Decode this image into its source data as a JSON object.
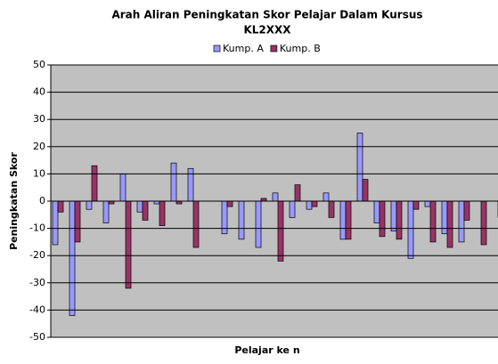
{
  "chart_data": {
    "type": "bar",
    "title": [
      "Arah Aliran Peningkatan Skor Pelajar Dalam Kursus",
      "KL2XXX"
    ],
    "x_label": "Pelajar ke n",
    "y_label": "Peningkatan Skor",
    "categories": [
      null,
      null,
      null,
      null,
      null,
      null,
      null,
      null,
      null,
      null,
      null,
      null,
      null,
      null,
      null,
      null,
      null,
      null,
      null,
      null,
      null,
      null,
      null,
      null,
      null,
      null,
      null
    ],
    "series": [
      {
        "name": "Kump. A",
        "color": "#9999ff",
        "values": [
          -16,
          -42,
          -3,
          -8,
          10,
          -4,
          -1,
          14,
          12,
          0,
          -12,
          -14,
          -17,
          3,
          -6,
          -3,
          3,
          -14,
          25,
          -8,
          -11,
          -21,
          -2,
          -12,
          -15,
          0,
          0
        ]
      },
      {
        "name": "Kump. B",
        "color": "#993366",
        "values": [
          -4,
          -15,
          13,
          -1,
          -32,
          -7,
          -9,
          -1,
          -17,
          0,
          -2,
          0,
          1,
          -22,
          6,
          -2,
          -6,
          -14,
          8,
          -13,
          -14,
          -3,
          -15,
          -17,
          -7,
          -16,
          -6
        ]
      }
    ],
    "ylim": [
      -50,
      50
    ],
    "yticks": [
      -50,
      -40,
      -30,
      -20,
      -10,
      0,
      10,
      20,
      30,
      40,
      50
    ],
    "grid": true,
    "legend": "top"
  }
}
